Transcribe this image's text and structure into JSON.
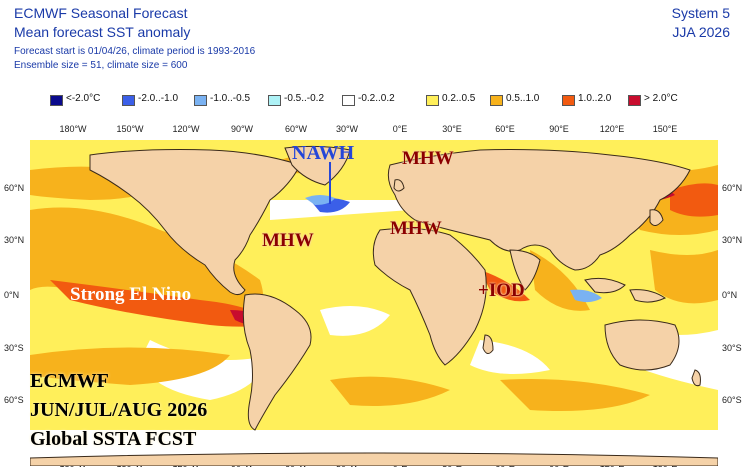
{
  "header": {
    "title": "ECMWF Seasonal Forecast",
    "subtitle": "Mean forecast SST anomaly",
    "forecast_info": "Forecast start is 01/04/26, climate period is 1993-2016",
    "ensemble_info": "Ensemble size = 51, climate size = 600",
    "system": "System 5",
    "season": "JJA 2026"
  },
  "legend": [
    {
      "label": "<-2.0°C",
      "color": "#0a0a8c"
    },
    {
      "label": "-2.0..-1.0",
      "color": "#3b5fe8"
    },
    {
      "label": "-1.0..-0.5",
      "color": "#7ab2f2"
    },
    {
      "label": "-0.5..-0.2",
      "color": "#aef2f6"
    },
    {
      "label": "-0.2..0.2",
      "color": "#ffffff"
    },
    {
      "label": "0.2..0.5",
      "color": "#ffef5a"
    },
    {
      "label": "0.5..1.0",
      "color": "#f7b21c"
    },
    {
      "label": "1.0..2.0",
      "color": "#f25a10"
    },
    {
      "label": "> 2.0°C",
      "color": "#c80c2e"
    }
  ],
  "axes": {
    "lon_labels": [
      "180°W",
      "150°W",
      "120°W",
      "90°W",
      "60°W",
      "30°W",
      "0°E",
      "30°E",
      "60°E",
      "90°E",
      "120°E",
      "150°E"
    ],
    "lat_labels": [
      "60°N",
      "30°N",
      "0°N",
      "30°S",
      "60°S"
    ]
  },
  "annotations": {
    "nawh": "NAWH",
    "mhw_north_atlantic": "MHW",
    "mhw_west_atlantic": "MHW",
    "mhw_mediterranean": "MHW",
    "iod": "+IOD",
    "el_nino": "Strong El Nino"
  },
  "footer_text": {
    "line1": "ECMWF",
    "line2": "JUN/JUL/AUG 2026",
    "line3": "Global SSTA FCST"
  },
  "map_colors": {
    "land": "#f5d2a8",
    "coast": "#3a2a1a"
  }
}
